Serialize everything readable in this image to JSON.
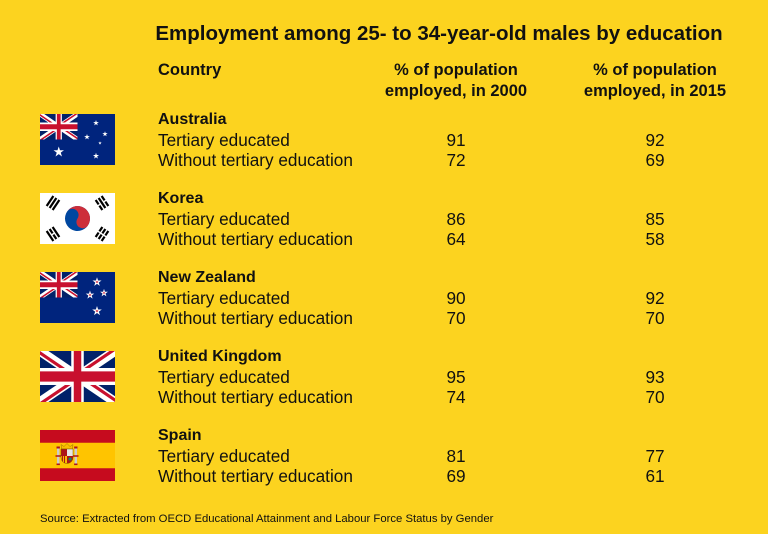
{
  "colors": {
    "background": "#FCD31F",
    "text": "#111111"
  },
  "chart_data": {
    "type": "table",
    "title": "Employment among 25- to 34-year-old males by education",
    "column_headers": [
      "Country",
      "% of population\nemployed, in 2000",
      "% of population\nemployed, in 2015"
    ],
    "groups": [
      {
        "country": "Australia",
        "flag_icon": "australia-flag-icon",
        "rows": [
          {
            "label": "Tertiary educated",
            "values": [
              91,
              92
            ]
          },
          {
            "label": "Without tertiary education",
            "values": [
              72,
              69
            ]
          }
        ]
      },
      {
        "country": "Korea",
        "flag_icon": "korea-flag-icon",
        "rows": [
          {
            "label": "Tertiary educated",
            "values": [
              86,
              85
            ]
          },
          {
            "label": "Without tertiary education",
            "values": [
              64,
              58
            ]
          }
        ]
      },
      {
        "country": "New Zealand",
        "flag_icon": "new-zealand-flag-icon",
        "rows": [
          {
            "label": "Tertiary educated",
            "values": [
              90,
              92
            ]
          },
          {
            "label": "Without tertiary education",
            "values": [
              70,
              70
            ]
          }
        ]
      },
      {
        "country": "United Kingdom",
        "flag_icon": "united-kingdom-flag-icon",
        "rows": [
          {
            "label": "Tertiary educated",
            "values": [
              95,
              93
            ]
          },
          {
            "label": "Without tertiary education",
            "values": [
              74,
              70
            ]
          }
        ]
      },
      {
        "country": "Spain",
        "flag_icon": "spain-flag-icon",
        "rows": [
          {
            "label": "Tertiary educated",
            "values": [
              81,
              77
            ]
          },
          {
            "label": "Without tertiary education",
            "values": [
              69,
              61
            ]
          }
        ]
      }
    ],
    "source": "Source: Extracted from OECD Educational Attainment and Labour Force Status by Gender"
  }
}
